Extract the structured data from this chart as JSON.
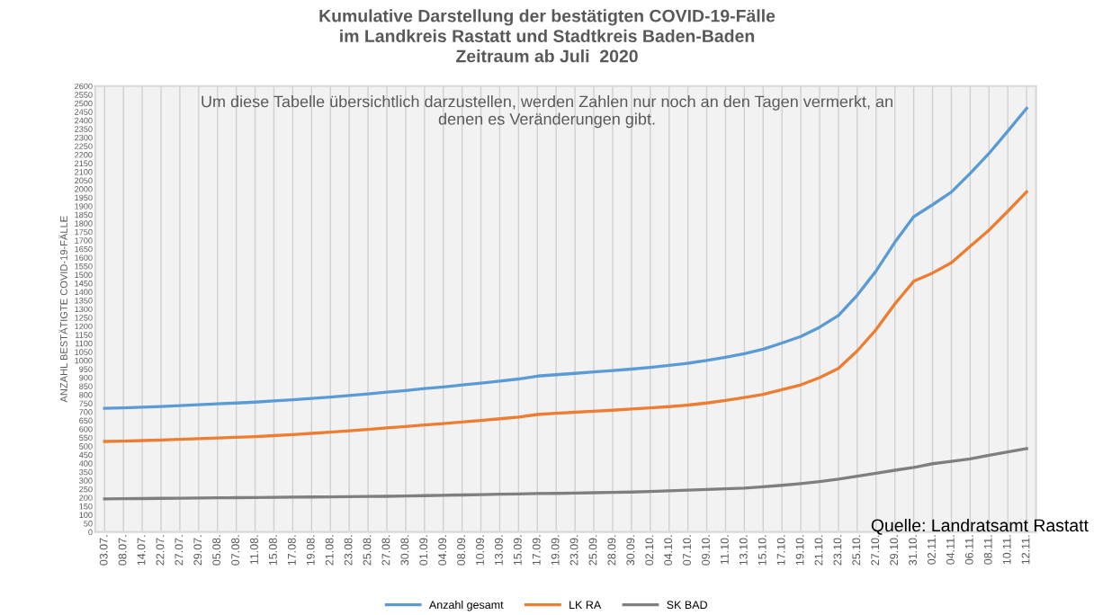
{
  "chart_data": {
    "type": "line",
    "title": "Kumulative Darstellung der bestätigten COVID-19-Fälle\nim Landkreis Rastatt und Stadtkreis Baden-Baden\nZeitraum ab Juli  2020",
    "subtitle": "Um diese Tabelle übersichtlich darzustellen, werden Zahlen nur noch an den Tagen vermerkt, an\ndenen es Veränderungen gibt.",
    "ylabel": "ANZAHL BESTÄTIGTE COVID-19-FÄLLE",
    "annotations": [
      "Quelle: Landratsamt Rastatt"
    ],
    "categories": [
      "03.07.",
      "08.07.",
      "14.07.",
      "22.07.",
      "27.07.",
      "29.07.",
      "05.08.",
      "07.08.",
      "11.08.",
      "15.08.",
      "17.08.",
      "19.08.",
      "21.08.",
      "23.08.",
      "25.08.",
      "27.08.",
      "30.08.",
      "01.09.",
      "04.09.",
      "08.09.",
      "10.09.",
      "13.09.",
      "15.09.",
      "17.09.",
      "19.09.",
      "23.09.",
      "25.09.",
      "28.09.",
      "30.09.",
      "02.10.",
      "04.10.",
      "07.10.",
      "09.10.",
      "11.10.",
      "13.10.",
      "15.10.",
      "17.10.",
      "19.10.",
      "21.10.",
      "23.10.",
      "25.10.",
      "27.10.",
      "29.10.",
      "31.10.",
      "02.11.",
      "04.11.",
      "06.11.",
      "08.11.",
      "10.11.",
      "12.11."
    ],
    "series": [
      {
        "name": "Anzahl gesamt",
        "color": "#5b9bd5",
        "values": [
          721,
          724,
          728,
          732,
          737,
          742,
          747,
          752,
          757,
          764,
          771,
          779,
          787,
          796,
          805,
          815,
          825,
          836,
          846,
          857,
          868,
          880,
          892,
          909,
          917,
          925,
          933,
          941,
          950,
          960,
          971,
          984,
          1000,
          1019,
          1040,
          1066,
          1102,
          1140,
          1194,
          1262,
          1381,
          1522,
          1690,
          1838,
          1908,
          1982,
          2091,
          2207,
          2337,
          2470
        ]
      },
      {
        "name": "LK RA",
        "color": "#ed7d31",
        "values": [
          528,
          530,
          533,
          536,
          540,
          544,
          548,
          552,
          556,
          562,
          568,
          575,
          582,
          590,
          598,
          607,
          615,
          624,
          632,
          641,
          650,
          660,
          670,
          685,
          692,
          698,
          704,
          710,
          717,
          724,
          731,
          740,
          752,
          767,
          784,
          802,
          830,
          858,
          900,
          954,
          1056,
          1180,
          1330,
          1462,
          1510,
          1570,
          1665,
          1760,
          1870,
          1984
        ]
      },
      {
        "name": "SK BAD",
        "color": "#7f7f7f",
        "values": [
          193,
          194,
          195,
          196,
          197,
          198,
          199,
          200,
          201,
          202,
          203,
          204,
          205,
          206,
          207,
          208,
          210,
          212,
          214,
          216,
          218,
          220,
          222,
          224,
          225,
          227,
          229,
          231,
          233,
          236,
          240,
          244,
          248,
          252,
          256,
          264,
          272,
          282,
          294,
          308,
          325,
          342,
          360,
          376,
          398,
          412,
          426,
          447,
          467,
          486
        ]
      }
    ],
    "ylim": [
      0,
      2600
    ],
    "yticks": [
      0,
      50,
      100,
      150,
      200,
      250,
      300,
      350,
      400,
      450,
      500,
      550,
      600,
      650,
      700,
      750,
      800,
      850,
      900,
      950,
      1000,
      1050,
      1100,
      1150,
      1200,
      1250,
      1300,
      1350,
      1400,
      1450,
      1500,
      1550,
      1600,
      1650,
      1700,
      1750,
      1800,
      1850,
      1900,
      1950,
      2000,
      2050,
      2100,
      2150,
      2200,
      2250,
      2300,
      2350,
      2400,
      2450,
      2500,
      2550,
      2600
    ],
    "grid": "x",
    "legend": "bottom",
    "marker": "none",
    "line_style": "solid"
  }
}
